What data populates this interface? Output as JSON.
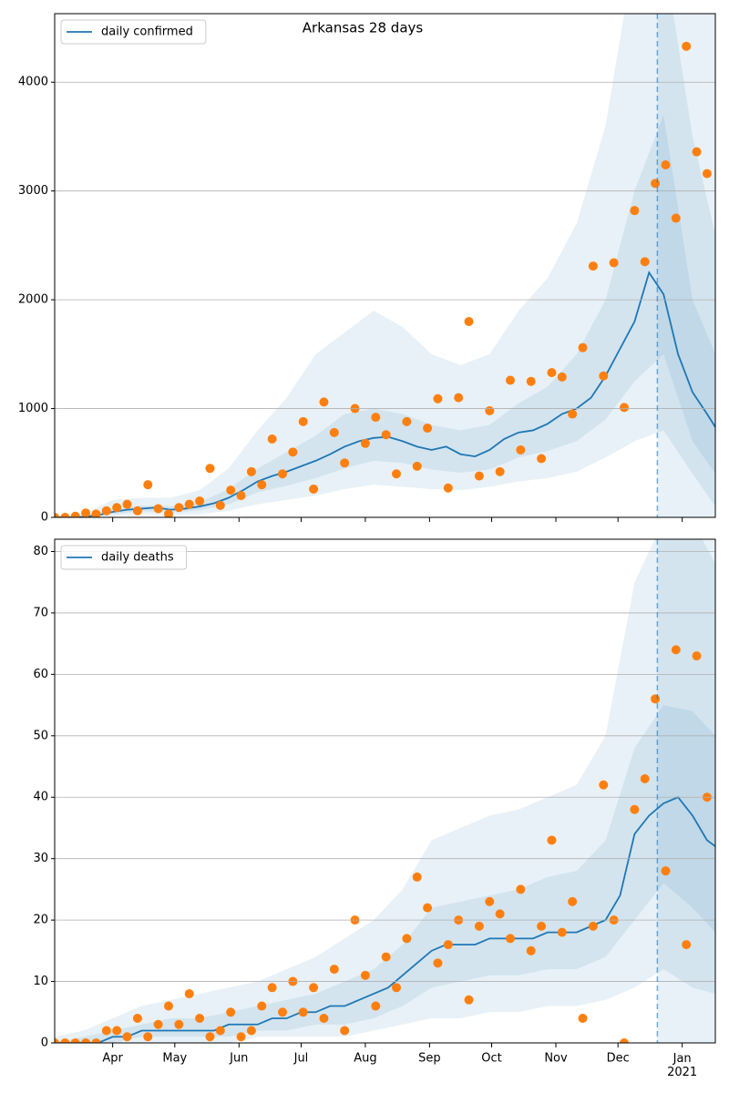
{
  "chart_data": [
    {
      "type": "line",
      "title": "Arkansas 28 days",
      "xlim": [
        64,
        383
      ],
      "ylim": [
        0,
        4630
      ],
      "yticks": [
        0,
        1000,
        2000,
        3000,
        4000
      ],
      "grid": true,
      "legend": "upper left",
      "forecast_start": 355,
      "series": [
        {
          "name": "daily confirmed",
          "color": "#1f77b4",
          "x": [
            64,
            71,
            78,
            85,
            92,
            99,
            106,
            113,
            120,
            127,
            134,
            141,
            148,
            155,
            162,
            169,
            176,
            183,
            190,
            197,
            204,
            211,
            218,
            225,
            232,
            239,
            246,
            253,
            260,
            267,
            274,
            281,
            288,
            295,
            302,
            309,
            316,
            323,
            330,
            337,
            344,
            351,
            358,
            365,
            372,
            379,
            383
          ],
          "values": [
            0,
            0,
            5,
            20,
            50,
            70,
            80,
            90,
            70,
            80,
            100,
            130,
            180,
            250,
            330,
            380,
            420,
            470,
            520,
            580,
            650,
            700,
            730,
            740,
            700,
            650,
            620,
            650,
            580,
            560,
            620,
            720,
            780,
            800,
            860,
            950,
            1000,
            1100,
            1300,
            1550,
            1800,
            2250,
            2050,
            1500,
            1150,
            950,
            830
          ]
        }
      ],
      "observed": {
        "color": "#ff7f0e",
        "x": [
          64,
          69,
          74,
          79,
          84,
          89,
          94,
          99,
          104,
          109,
          114,
          119,
          124,
          129,
          134,
          139,
          144,
          149,
          154,
          159,
          164,
          169,
          174,
          179,
          184,
          189,
          194,
          199,
          204,
          209,
          214,
          219,
          224,
          229,
          234,
          239,
          244,
          249,
          254,
          259,
          264,
          269,
          274,
          279,
          284,
          289,
          294,
          299,
          304,
          309,
          314,
          319,
          324,
          329,
          334,
          339,
          344,
          349,
          354,
          359,
          364,
          369,
          374,
          379
        ],
        "values": [
          0,
          0,
          10,
          40,
          30,
          60,
          90,
          120,
          60,
          300,
          80,
          30,
          90,
          120,
          150,
          450,
          110,
          250,
          200,
          420,
          300,
          720,
          400,
          600,
          880,
          260,
          1060,
          780,
          500,
          1000,
          680,
          920,
          760,
          400,
          880,
          470,
          820,
          1090,
          270,
          1100,
          1800,
          380,
          980,
          420,
          1260,
          620,
          1250,
          540,
          1330,
          1290,
          950,
          1560,
          2310,
          1300,
          2340,
          1010,
          2820,
          2350,
          3070,
          3240,
          2750,
          4330,
          3360,
          3160
        ]
      },
      "band_color": "#1f77b4",
      "bands": {
        "x": [
          64,
          78,
          92,
          106,
          120,
          134,
          148,
          162,
          176,
          190,
          204,
          218,
          232,
          246,
          260,
          274,
          288,
          302,
          316,
          330,
          344,
          358,
          372,
          383
        ],
        "outer_lower": [
          0,
          0,
          10,
          30,
          20,
          30,
          60,
          120,
          160,
          200,
          260,
          300,
          280,
          260,
          250,
          280,
          330,
          360,
          420,
          550,
          700,
          800,
          400,
          100
        ],
        "outer_upper": [
          5,
          30,
          160,
          180,
          180,
          250,
          450,
          800,
          1100,
          1500,
          1700,
          1900,
          1750,
          1500,
          1400,
          1500,
          1900,
          2200,
          2700,
          3600,
          5200,
          5200,
          3500,
          2600
        ],
        "inner_lower": [
          0,
          2,
          30,
          55,
          45,
          65,
          120,
          230,
          290,
          360,
          450,
          520,
          500,
          440,
          410,
          440,
          550,
          610,
          700,
          900,
          1250,
          1500,
          700,
          400
        ],
        "inner_upper": [
          0,
          10,
          80,
          110,
          100,
          140,
          260,
          450,
          600,
          750,
          950,
          1000,
          950,
          850,
          800,
          850,
          1050,
          1200,
          1500,
          2000,
          3000,
          3700,
          2000,
          1500
        ]
      }
    },
    {
      "type": "line",
      "xlim": [
        64,
        383
      ],
      "ylim": [
        0,
        82
      ],
      "yticks": [
        0,
        10,
        20,
        30,
        40,
        50,
        60,
        70,
        80
      ],
      "grid": true,
      "legend": "upper left",
      "forecast_start": 355,
      "xticks": [
        {
          "value": 92,
          "label": "Apr"
        },
        {
          "value": 122,
          "label": "May"
        },
        {
          "value": 153,
          "label": "Jun"
        },
        {
          "value": 183,
          "label": "Jul"
        },
        {
          "value": 214,
          "label": "Aug"
        },
        {
          "value": 245,
          "label": "Sep"
        },
        {
          "value": 275,
          "label": "Oct"
        },
        {
          "value": 306,
          "label": "Nov"
        },
        {
          "value": 336,
          "label": "Dec"
        },
        {
          "value": 367,
          "label": "Jan\n2021"
        }
      ],
      "series": [
        {
          "name": "daily deaths",
          "color": "#1f77b4",
          "x": [
            64,
            71,
            78,
            85,
            92,
            99,
            106,
            113,
            120,
            127,
            134,
            141,
            148,
            155,
            162,
            169,
            176,
            183,
            190,
            197,
            204,
            211,
            218,
            225,
            232,
            239,
            246,
            253,
            260,
            267,
            274,
            281,
            288,
            295,
            302,
            309,
            316,
            323,
            330,
            337,
            344,
            351,
            358,
            365,
            372,
            379,
            383
          ],
          "values": [
            0,
            0,
            0,
            0,
            1,
            1,
            2,
            2,
            2,
            2,
            2,
            2,
            3,
            3,
            3,
            4,
            4,
            5,
            5,
            6,
            6,
            7,
            8,
            9,
            11,
            13,
            15,
            16,
            16,
            16,
            17,
            17,
            17,
            17,
            18,
            18,
            18,
            19,
            20,
            24,
            34,
            37,
            39,
            40,
            37,
            33,
            32
          ]
        }
      ],
      "observed": {
        "color": "#ff7f0e",
        "x": [
          64,
          69,
          74,
          79,
          84,
          89,
          94,
          99,
          104,
          109,
          114,
          119,
          124,
          129,
          134,
          139,
          144,
          149,
          154,
          159,
          164,
          169,
          174,
          179,
          184,
          189,
          194,
          199,
          204,
          209,
          214,
          219,
          224,
          229,
          234,
          239,
          244,
          249,
          254,
          259,
          264,
          269,
          274,
          279,
          284,
          289,
          294,
          299,
          304,
          309,
          314,
          319,
          324,
          329,
          334,
          339,
          344,
          349,
          354,
          359,
          364,
          369,
          374,
          379
        ],
        "values": [
          0,
          0,
          0,
          0,
          0,
          2,
          2,
          1,
          4,
          1,
          3,
          6,
          3,
          8,
          4,
          1,
          2,
          5,
          1,
          2,
          6,
          9,
          5,
          10,
          5,
          9,
          4,
          12,
          2,
          20,
          11,
          6,
          14,
          9,
          17,
          27,
          22,
          13,
          16,
          20,
          7,
          19,
          23,
          21,
          17,
          25,
          15,
          19,
          33,
          18,
          23,
          4,
          19,
          42,
          20,
          0,
          38,
          43,
          56,
          28,
          64,
          16,
          63,
          40
        ]
      },
      "band_color": "#1f77b4",
      "bands": {
        "x": [
          64,
          78,
          92,
          106,
          120,
          134,
          148,
          162,
          176,
          190,
          204,
          218,
          232,
          246,
          260,
          274,
          288,
          302,
          316,
          330,
          344,
          358,
          372,
          383
        ],
        "outer_lower": [
          0,
          0,
          0,
          0,
          0,
          0,
          0,
          1,
          1,
          1,
          1,
          2,
          3,
          4,
          4,
          5,
          5,
          6,
          6,
          7,
          9,
          12,
          9,
          8
        ],
        "outer_upper": [
          1,
          2,
          4,
          6,
          7,
          8,
          9,
          10,
          12,
          14,
          17,
          20,
          25,
          33,
          35,
          37,
          38,
          40,
          42,
          50,
          75,
          85,
          85,
          78
        ],
        "inner_lower": [
          0,
          0,
          0,
          1,
          1,
          1,
          1,
          2,
          2,
          3,
          3,
          4,
          6,
          9,
          10,
          11,
          11,
          12,
          12,
          14,
          20,
          26,
          22,
          18
        ],
        "inner_upper": [
          0,
          1,
          2,
          3,
          4,
          4,
          5,
          6,
          7,
          8,
          10,
          12,
          16,
          22,
          23,
          24,
          25,
          27,
          28,
          33,
          48,
          55,
          54,
          50
        ]
      }
    }
  ]
}
